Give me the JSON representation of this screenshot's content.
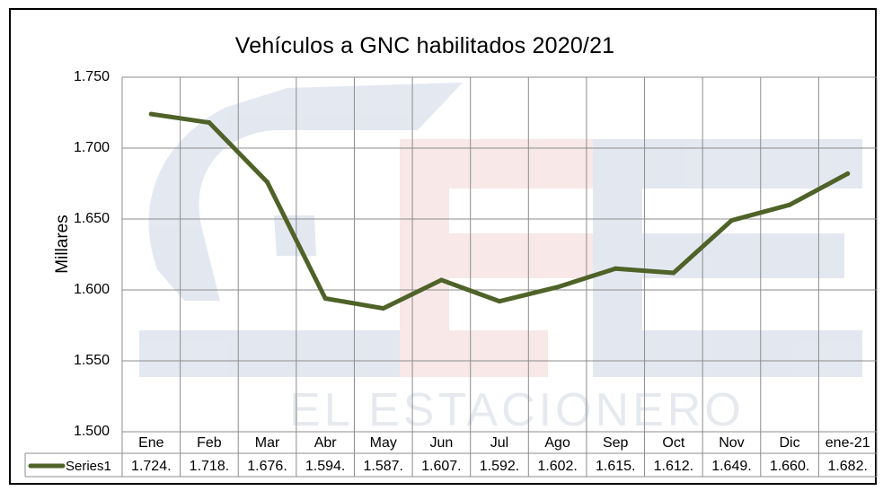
{
  "chart_data": {
    "type": "line",
    "title": "Vehículos a GNC  habilitados 2020/21",
    "ylabel": "Millares",
    "xlabel": "",
    "ylim": [
      1500,
      1750
    ],
    "y_ticks": [
      "1.750",
      "1.700",
      "1.650",
      "1.600",
      "1.550",
      "1.500"
    ],
    "y_tick_values": [
      1750,
      1700,
      1650,
      1600,
      1550,
      1500
    ],
    "categories": [
      "Ene",
      "Feb",
      "Mar",
      "Abr",
      "May",
      "Jun",
      "Jul",
      "Ago",
      "Sep",
      "Oct",
      "Nov",
      "Dic",
      "ene-21"
    ],
    "grid": true,
    "legend": "data-table",
    "series": [
      {
        "name": "Series1",
        "color": "#4f6228",
        "values": [
          1724,
          1718,
          1676,
          1594,
          1587,
          1607,
          1592,
          1602,
          1615,
          1612,
          1649,
          1660,
          1682
        ],
        "table_labels": [
          "1.724.",
          "1.718.",
          "1.676.",
          "1.594.",
          "1.587.",
          "1.607.",
          "1.592.",
          "1.602.",
          "1.615.",
          "1.612.",
          "1.649.",
          "1.660.",
          "1.682."
        ]
      }
    ]
  },
  "watermark": {
    "text": "EL ESTACIONERO"
  }
}
